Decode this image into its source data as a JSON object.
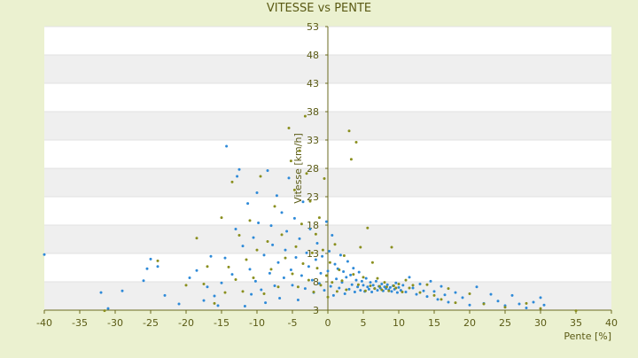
{
  "chart_data": {
    "type": "scatter",
    "title": "VITESSE vs PENTE",
    "xlabel": "Pente [%]",
    "ylabel": "Vitesse [km/h]",
    "xlim": [
      -40,
      40
    ],
    "ylim": [
      3,
      53
    ],
    "xticks": [
      -40,
      -35,
      -30,
      -25,
      -20,
      -15,
      -10,
      -5,
      0,
      5,
      10,
      15,
      20,
      25,
      30,
      35,
      40
    ],
    "yticks": [
      3,
      8,
      13,
      18,
      23,
      28,
      33,
      38,
      43,
      48,
      53
    ],
    "grid": "alternating horizontal bands",
    "legend": "none",
    "series": [
      {
        "color": "#2e8ad8",
        "points": [
          [
            -40,
            12.8
          ],
          [
            -32,
            6.1
          ],
          [
            -31,
            3.3
          ],
          [
            -29,
            6.4
          ],
          [
            -26,
            8.2
          ],
          [
            -25.5,
            10.3
          ],
          [
            -25,
            12
          ],
          [
            -24,
            10.7
          ],
          [
            -23,
            5.6
          ],
          [
            -21,
            4.1
          ],
          [
            -19.5,
            8.7
          ],
          [
            -18.5,
            10
          ],
          [
            -17.5,
            4.7
          ],
          [
            -17,
            7.1
          ],
          [
            -16.5,
            12.5
          ],
          [
            -16,
            5.5
          ],
          [
            -15.5,
            3.8
          ],
          [
            -15,
            7.8
          ],
          [
            -14.5,
            12.2
          ],
          [
            -14.3,
            31.9
          ],
          [
            -13.5,
            9.3
          ],
          [
            -13,
            17.3
          ],
          [
            -12.8,
            26.6
          ],
          [
            -12.5,
            27.8
          ],
          [
            -12,
            14.3
          ],
          [
            -11.7,
            3.7
          ],
          [
            -11.3,
            21.8
          ],
          [
            -11,
            10.2
          ],
          [
            -10.8,
            5.8
          ],
          [
            -10.5,
            15.8
          ],
          [
            -10.2,
            8.1
          ],
          [
            -10,
            23.7
          ],
          [
            -9.8,
            18.4
          ],
          [
            -9.4,
            6.6
          ],
          [
            -9,
            12.7
          ],
          [
            -8.8,
            4.3
          ],
          [
            -8.5,
            27.6
          ],
          [
            -8.2,
            9.5
          ],
          [
            -8,
            17.9
          ],
          [
            -7.8,
            14.5
          ],
          [
            -7.5,
            7.3
          ],
          [
            -7.2,
            23.2
          ],
          [
            -7,
            11.4
          ],
          [
            -6.8,
            5.1
          ],
          [
            -6.5,
            20.2
          ],
          [
            -6.2,
            8.7
          ],
          [
            -6,
            13.6
          ],
          [
            -5.8,
            16.9
          ],
          [
            -5.5,
            26.3
          ],
          [
            -5.2,
            10.1
          ],
          [
            -5,
            7.4
          ],
          [
            -4.7,
            19.2
          ],
          [
            -4.5,
            12.3
          ],
          [
            -4.2,
            4.8
          ],
          [
            -4,
            15.6
          ],
          [
            -3.7,
            9.1
          ],
          [
            -3.5,
            22.1
          ],
          [
            -3.2,
            6.8
          ],
          [
            -3,
            13.1
          ],
          [
            -2.7,
            10.7
          ],
          [
            -2.5,
            17.3
          ],
          [
            -2.2,
            8.3
          ],
          [
            -2,
            6.1
          ],
          [
            -1.7,
            11.9
          ],
          [
            -1.5,
            14.8
          ],
          [
            -1.2,
            7.7
          ],
          [
            -1,
            9.5
          ],
          [
            -0.8,
            12.5
          ],
          [
            -0.5,
            6.5
          ],
          [
            -0.2,
            18.6
          ],
          [
            0,
            9.9
          ],
          [
            0.2,
            13.4
          ],
          [
            0.4,
            7.2
          ],
          [
            0.6,
            16.2
          ],
          [
            0.8,
            5.6
          ],
          [
            1,
            11.1
          ],
          [
            1.2,
            8.5
          ],
          [
            1.4,
            10.3
          ],
          [
            1.6,
            6.9
          ],
          [
            1.8,
            12.7
          ],
          [
            2,
            7.9
          ],
          [
            2.2,
            9.8
          ],
          [
            2.4,
            5.9
          ],
          [
            2.6,
            8.8
          ],
          [
            2.8,
            11.6
          ],
          [
            3,
            6.7
          ],
          [
            3.2,
            9.2
          ],
          [
            3.4,
            7.5
          ],
          [
            3.6,
            10.4
          ],
          [
            3.8,
            6.2
          ],
          [
            4,
            8.3
          ],
          [
            4.2,
            7.1
          ],
          [
            4.4,
            9.7
          ],
          [
            4.6,
            6.5
          ],
          [
            4.8,
            8.1
          ],
          [
            5,
            7.4
          ],
          [
            5.2,
            6.3
          ],
          [
            5.4,
            8.6
          ],
          [
            5.6,
            7.1
          ],
          [
            5.8,
            6.7
          ],
          [
            6,
            7.9
          ],
          [
            6.2,
            6.2
          ],
          [
            6.4,
            7.4
          ],
          [
            6.6,
            6.8
          ],
          [
            6.8,
            8.1
          ],
          [
            7,
            6.5
          ],
          [
            7.2,
            7.2
          ],
          [
            7.4,
            6.9
          ],
          [
            7.6,
            7.6
          ],
          [
            7.8,
            6.4
          ],
          [
            8,
            7.1
          ],
          [
            8.2,
            6.8
          ],
          [
            8.4,
            7.5
          ],
          [
            8.6,
            6.6
          ],
          [
            8.8,
            7
          ],
          [
            9,
            6.3
          ],
          [
            9.2,
            7.3
          ],
          [
            9.4,
            6.7
          ],
          [
            9.6,
            7.8
          ],
          [
            9.8,
            6.1
          ],
          [
            10,
            7
          ],
          [
            10.3,
            6.5
          ],
          [
            10.6,
            7.4
          ],
          [
            11,
            6.2
          ],
          [
            11.5,
            8.8
          ],
          [
            12,
            6.9
          ],
          [
            12.5,
            5.8
          ],
          [
            13,
            7.6
          ],
          [
            13.5,
            6.4
          ],
          [
            14,
            5.4
          ],
          [
            14.5,
            8.1
          ],
          [
            15,
            6.3
          ],
          [
            15.5,
            4.9
          ],
          [
            16,
            7.2
          ],
          [
            16.5,
            5.7
          ],
          [
            17,
            4.4
          ],
          [
            18,
            6.1
          ],
          [
            19,
            5.2
          ],
          [
            20,
            3.9
          ],
          [
            21,
            7.1
          ],
          [
            22,
            4.2
          ],
          [
            23,
            5.8
          ],
          [
            24,
            4.6
          ],
          [
            25,
            3.8
          ],
          [
            26,
            5.6
          ],
          [
            27,
            4.1
          ],
          [
            28,
            3.4
          ],
          [
            29,
            4.4
          ],
          [
            30,
            5.2
          ],
          [
            30.5,
            3.9
          ]
        ]
      },
      {
        "color": "#8a8f1e",
        "points": [
          [
            -31.5,
            2.9
          ],
          [
            -24,
            11.7
          ],
          [
            -20,
            7.4
          ],
          [
            -18.5,
            15.7
          ],
          [
            -17.5,
            7.6
          ],
          [
            -17,
            10.7
          ],
          [
            -16,
            4.2
          ],
          [
            -15,
            19.3
          ],
          [
            -14.5,
            6.1
          ],
          [
            -14,
            10.6
          ],
          [
            -13.5,
            25.6
          ],
          [
            -13,
            8.4
          ],
          [
            -12.5,
            16.2
          ],
          [
            -12,
            6.3
          ],
          [
            -11.5,
            11.9
          ],
          [
            -11,
            18.8
          ],
          [
            -10.5,
            8.7
          ],
          [
            -10,
            13.6
          ],
          [
            -9.5,
            26.6
          ],
          [
            -9,
            5.9
          ],
          [
            -8.5,
            15.1
          ],
          [
            -8,
            10.2
          ],
          [
            -7.5,
            21.3
          ],
          [
            -7,
            7.1
          ],
          [
            -6.5,
            16.3
          ],
          [
            -6,
            12.2
          ],
          [
            -5.5,
            35.1
          ],
          [
            -5.2,
            29.3
          ],
          [
            -5,
            9.4
          ],
          [
            -4.7,
            24.2
          ],
          [
            -4.5,
            14.2
          ],
          [
            -4.2,
            7.1
          ],
          [
            -4,
            31.1
          ],
          [
            -3.7,
            18.2
          ],
          [
            -3.5,
            11.2
          ],
          [
            -3.2,
            37.2
          ],
          [
            -3,
            27.1
          ],
          [
            -2.7,
            8.3
          ],
          [
            -2.5,
            22.2
          ],
          [
            -2.2,
            13.1
          ],
          [
            -2,
            6.2
          ],
          [
            -1.7,
            16.4
          ],
          [
            -1.5,
            10.4
          ],
          [
            -1.2,
            19.3
          ],
          [
            -1,
            7.4
          ],
          [
            -0.7,
            13.6
          ],
          [
            -0.5,
            26.2
          ],
          [
            -0.2,
            9.1
          ],
          [
            0,
            5.3
          ],
          [
            0.3,
            11.4
          ],
          [
            0.6,
            7.9
          ],
          [
            1,
            14.6
          ],
          [
            1.3,
            6.3
          ],
          [
            1.6,
            10.1
          ],
          [
            2,
            8.2
          ],
          [
            2.3,
            12.6
          ],
          [
            2.6,
            6.6
          ],
          [
            3,
            34.6
          ],
          [
            3.3,
            29.6
          ],
          [
            3.6,
            9.3
          ],
          [
            4,
            32.6
          ],
          [
            4.3,
            7.5
          ],
          [
            4.6,
            14.1
          ],
          [
            5,
            8.8
          ],
          [
            5.3,
            6.4
          ],
          [
            5.6,
            17.5
          ],
          [
            6,
            7.3
          ],
          [
            6.3,
            11.4
          ],
          [
            6.6,
            6.8
          ],
          [
            7,
            8.6
          ],
          [
            7.3,
            7.2
          ],
          [
            7.6,
            6.6
          ],
          [
            8,
            7.9
          ],
          [
            8.3,
            7.1
          ],
          [
            8.6,
            6.4
          ],
          [
            9,
            14.1
          ],
          [
            9.3,
            7.3
          ],
          [
            9.6,
            6.9
          ],
          [
            10,
            7.6
          ],
          [
            10.5,
            6.2
          ],
          [
            11,
            8.3
          ],
          [
            11.5,
            6.9
          ],
          [
            12,
            7.4
          ],
          [
            13,
            6.1
          ],
          [
            14,
            7.5
          ],
          [
            15,
            5.6
          ],
          [
            16,
            4.9
          ],
          [
            17,
            6.8
          ],
          [
            18,
            4.3
          ],
          [
            20,
            5.9
          ],
          [
            22,
            4.1
          ],
          [
            25,
            3.5
          ],
          [
            28,
            4.2
          ],
          [
            30,
            3.3
          ],
          [
            35,
            2.9
          ]
        ]
      }
    ]
  }
}
